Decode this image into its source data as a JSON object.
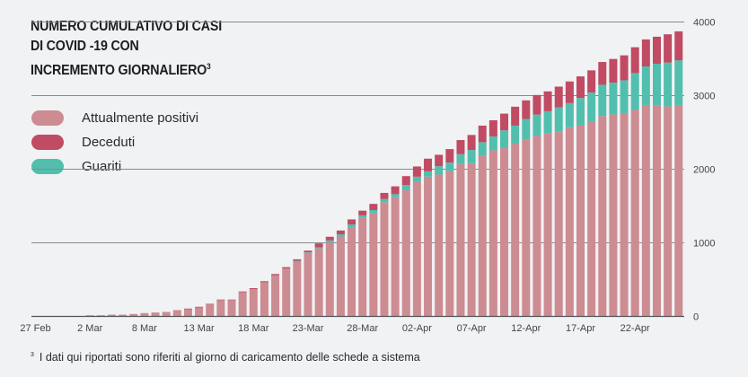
{
  "chart_data": {
    "type": "bar",
    "stacked": true,
    "title": "NUMERO CUMULATIVO DI CASI DI COVID -19  CON INCREMENTO GIORNALIERO",
    "title_lines": [
      "NUMERO CUMULATIVO DI CASI",
      "DI COVID -19  CON",
      "INCREMENTO GIORNALIERO"
    ],
    "title_footnote_mark": "3",
    "xlabel": "",
    "ylabel": "",
    "ylim": [
      0,
      4000
    ],
    "y_ticks": [
      0,
      1000,
      2000,
      3000,
      4000
    ],
    "y_axis_side": "right",
    "grid": "horizontal",
    "legend_placement": "left",
    "x_tick_labels": [
      "27 Feb",
      "2 Mar",
      "8 Mar",
      "13 Mar",
      "18 Mar",
      "23-Mar",
      "28-Mar",
      "02-Apr",
      "07-Apr",
      "12-Apr",
      "17-Apr",
      "22-Apr"
    ],
    "x_tick_every_n_bars": 5,
    "series": [
      {
        "name": "Attualmente positivi",
        "color": "#cc8c92",
        "values": [
          1,
          1,
          1,
          1,
          2,
          16,
          16,
          24,
          24,
          33,
          45,
          53,
          61,
          86,
          104,
          128,
          167,
          223,
          223,
          330,
          372,
          464,
          560,
          650,
          750,
          862,
          925,
          1004,
          1086,
          1208,
          1338,
          1400,
          1551,
          1620,
          1714,
          1829,
          1898,
          1927,
          1976,
          2069,
          2082,
          2188,
          2257,
          2286,
          2347,
          2404,
          2453,
          2490,
          2514,
          2571,
          2592,
          2641,
          2722,
          2743,
          2751,
          2804,
          2873,
          2869,
          2853,
          2865
        ]
      },
      {
        "name": "Deceduti",
        "color": "#c04b63",
        "values": [
          0,
          0,
          0,
          0,
          0,
          0,
          0,
          0,
          0,
          0,
          0,
          0,
          0,
          0,
          2,
          3,
          4,
          6,
          6,
          9,
          12,
          14,
          16,
          19,
          20,
          25,
          55,
          49,
          52,
          69,
          64,
          84,
          82,
          106,
          122,
          139,
          172,
          155,
          183,
          192,
          204,
          225,
          220,
          228,
          257,
          253,
          265,
          269,
          281,
          294,
          294,
          302,
          310,
          322,
          339,
          351,
          367,
          367,
          384,
          395
        ]
      },
      {
        "name": "Guariti",
        "color": "#52bfae",
        "values": [
          0,
          0,
          0,
          0,
          0,
          0,
          0,
          0,
          0,
          0,
          0,
          0,
          0,
          0,
          0,
          0,
          0,
          0,
          0,
          0,
          0,
          0,
          0,
          0,
          6,
          7,
          12,
          29,
          29,
          41,
          35,
          45,
          45,
          41,
          70,
          69,
          73,
          114,
          114,
          135,
          179,
          179,
          188,
          241,
          245,
          278,
          290,
          298,
          327,
          327,
          375,
          400,
          425,
          433,
          457,
          502,
          523,
          564,
          596,
          613
        ]
      }
    ]
  },
  "legend": [
    {
      "label": "Attualmente positivi",
      "color": "#cc8c92"
    },
    {
      "label": "Deceduti",
      "color": "#c04b63"
    },
    {
      "label": "Guariti",
      "color": "#52bfae"
    }
  ],
  "footnote": {
    "mark": "3",
    "text": "I dati qui riportati sono riferiti al giorno di caricamento delle schede a sistema"
  }
}
